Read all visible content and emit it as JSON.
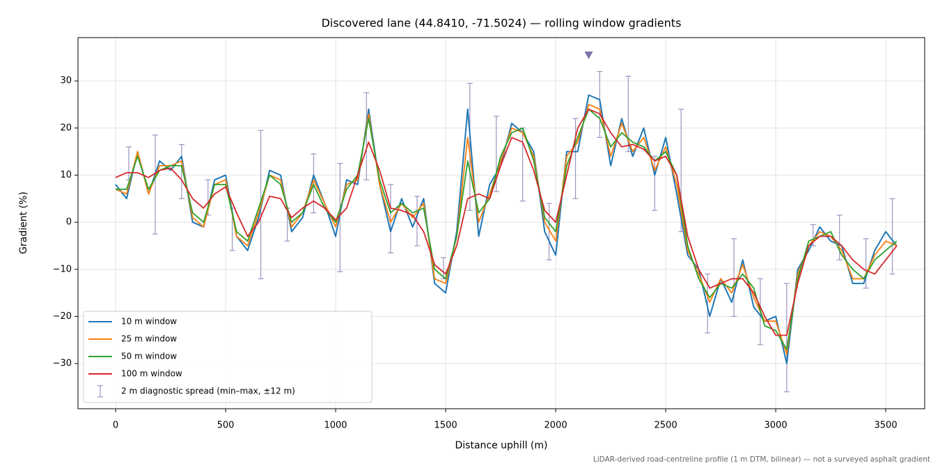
{
  "chart_data": {
    "type": "line",
    "title": "Discovered lane (44.8410, -71.5024) — rolling window gradients",
    "xlabel": "Distance uphill (m)",
    "ylabel": "Gradient (%)",
    "footnote": "LiDAR-derived road-centreline profile (1 m DTM, bilinear) — not a surveyed asphalt gradient",
    "xlim": [
      -171,
      3677
    ],
    "ylim": [
      -39.6,
      39.2
    ],
    "xticks": [
      0,
      500,
      1000,
      1500,
      2000,
      2500,
      3000,
      3500
    ],
    "yticks": [
      {
        "value": -30,
        "label": "−30"
      },
      {
        "value": -20,
        "label": "−20"
      },
      {
        "value": -10,
        "label": "−10"
      },
      0,
      10,
      20,
      30
    ],
    "grid": true,
    "legend": "lower left",
    "x": [
      0,
      50,
      100,
      150,
      200,
      250,
      300,
      350,
      400,
      450,
      500,
      550,
      600,
      650,
      700,
      750,
      800,
      850,
      900,
      950,
      1000,
      1050,
      1100,
      1150,
      1200,
      1250,
      1300,
      1350,
      1400,
      1450,
      1500,
      1550,
      1600,
      1650,
      1700,
      1750,
      1800,
      1850,
      1900,
      1950,
      2000,
      2050,
      2100,
      2150,
      2200,
      2250,
      2300,
      2350,
      2400,
      2450,
      2500,
      2550,
      2600,
      2650,
      2700,
      2750,
      2800,
      2850,
      2900,
      2950,
      3000,
      3050,
      3100,
      3150,
      3200,
      3250,
      3300,
      3350,
      3400,
      3450,
      3500,
      3550
    ],
    "series": [
      {
        "name": "10 m window",
        "color": "#1f77b4",
        "values": [
          8,
          5,
          15,
          6,
          13,
          11,
          14,
          0,
          -1,
          9,
          10,
          -3,
          -6,
          1,
          11,
          10,
          -2,
          1,
          10,
          4,
          -3,
          9,
          8,
          24,
          8,
          -2,
          5,
          -1,
          5,
          -13,
          -15,
          -2,
          24,
          -3,
          8,
          12,
          21,
          19,
          15,
          -2,
          -7,
          15,
          15,
          27,
          26,
          12,
          22,
          14,
          20,
          10,
          18,
          6,
          -7,
          -10,
          -20,
          -12,
          -17,
          -8,
          -18,
          -21,
          -20,
          -30,
          -10,
          -6,
          -1,
          -4,
          -5,
          -13,
          -13,
          -6,
          -2,
          -5
        ]
      },
      {
        "name": "25 m window",
        "color": "#ff7f0e",
        "values": [
          7,
          6,
          15,
          6,
          12,
          12,
          13,
          1,
          -1,
          8,
          9,
          -3,
          -5,
          2,
          10,
          9,
          -1,
          2,
          9,
          4,
          -1,
          8,
          9,
          23,
          8,
          0,
          4,
          1,
          4,
          -12,
          -13,
          -3,
          18,
          0,
          6,
          13,
          20,
          19,
          14,
          0,
          -4,
          14,
          17,
          25,
          24,
          14,
          21,
          15,
          18,
          11,
          16,
          8,
          -6,
          -11,
          -17,
          -12,
          -15,
          -9,
          -16,
          -21,
          -21,
          -28,
          -11,
          -5,
          -2,
          -3,
          -6,
          -12,
          -12,
          -7,
          -4,
          -5
        ]
      },
      {
        "name": "50 m window",
        "color": "#2ca02c",
        "values": [
          7,
          7,
          14,
          7,
          11,
          12,
          12,
          2,
          0,
          8,
          8,
          -2,
          -4,
          3,
          10,
          8,
          0,
          2,
          8,
          3,
          0,
          7,
          10,
          22,
          9,
          2,
          4,
          2,
          3,
          -10,
          -12,
          -3,
          13,
          2,
          5,
          14,
          19,
          20,
          13,
          1,
          -2,
          12,
          18,
          24,
          22,
          16,
          19,
          17,
          16,
          13,
          15,
          10,
          -5,
          -12,
          -16,
          -13,
          -14,
          -11,
          -14,
          -22,
          -23,
          -27,
          -12,
          -4,
          -3,
          -2,
          -7,
          -10,
          -12,
          -8,
          -6,
          -4
        ]
      },
      {
        "name": "100 m window",
        "color": "#d62728",
        "values": [
          9.5,
          10.5,
          10.5,
          9.5,
          11,
          11.5,
          9,
          5,
          3,
          6,
          7.5,
          2,
          -3,
          0,
          5.5,
          5,
          1,
          3,
          4.5,
          3,
          0.5,
          3,
          10,
          17,
          11,
          3,
          2.5,
          1.5,
          -2,
          -9,
          -11,
          -5,
          5,
          6,
          5,
          12,
          18,
          17,
          11,
          2.5,
          0,
          10,
          20,
          24,
          23,
          19,
          16,
          16.5,
          15.5,
          13,
          14,
          10,
          -3,
          -10,
          -14,
          -13,
          -12,
          -12,
          -15,
          -20,
          -24,
          -24,
          -13,
          -5,
          -3,
          -3,
          -5,
          -8,
          -10,
          -11,
          -8,
          -5
        ]
      }
    ],
    "spread": {
      "name": "2 m diagnostic spread (min–max, ±12 m)",
      "color": "#9a94c0",
      "x": [
        60,
        180,
        300,
        420,
        530,
        660,
        780,
        900,
        1020,
        1140,
        1250,
        1370,
        1490,
        1610,
        1730,
        1850,
        1970,
        2090,
        2200,
        2330,
        2450,
        2570,
        2690,
        2810,
        2930,
        3050,
        3170,
        3290,
        3410,
        3530
      ],
      "low": [
        9,
        -2.5,
        5,
        1.5,
        -6,
        -12,
        -4,
        2,
        -10.5,
        9,
        -6.5,
        -5,
        -12,
        2.5,
        6.5,
        4.5,
        -8,
        5,
        18,
        15,
        2.5,
        -2,
        -23.5,
        -20,
        -26,
        -36,
        -5,
        -8,
        -14,
        -11
      ],
      "high": [
        16,
        18.5,
        16.5,
        9,
        3,
        19.5,
        3,
        14.5,
        12.5,
        27.5,
        8,
        5.5,
        -7.5,
        29.5,
        22.5,
        20,
        4,
        22,
        32,
        31,
        14,
        24,
        -11,
        -3.5,
        -12,
        -13,
        -0.5,
        1.5,
        -3.5,
        5
      ]
    },
    "peak_marker": {
      "x": 2150,
      "y": 35.5,
      "color": "#8073ac"
    }
  }
}
